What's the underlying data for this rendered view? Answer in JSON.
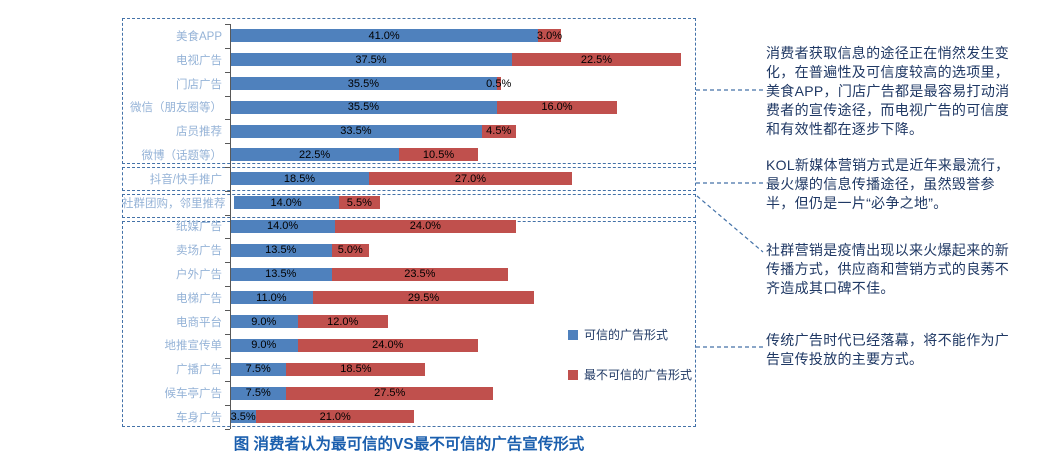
{
  "colors": {
    "trusted_blue": "#4F81BD",
    "untrusted_red": "#C0504D",
    "category_label_blue": "#95B3D7",
    "annotation_navy": "#1F3864",
    "caption_blue": "#1B5FAE",
    "dashed_box_blue": "#4472A8",
    "axis_gray": "#595959"
  },
  "chart_data": {
    "type": "bar",
    "orientation": "horizontal",
    "stacked": true,
    "title": "图  消费者认为最可信的VS最不可信的广告宣传形式",
    "xlabel": "",
    "ylabel": "",
    "xlim": [
      0,
      62
    ],
    "grid": false,
    "legend_position": "inside-right",
    "value_suffix": "%",
    "categories": [
      "美食APP",
      "电视广告",
      "门店广告",
      "微信（朋友圈等）",
      "店员推荐",
      "微博（话题等）",
      "抖音/快手推广",
      "社群团购，邻里推荐",
      "纸媒广告",
      "卖场广告",
      "户外广告",
      "电梯广告",
      "电商平台",
      "地推宣传单",
      "广播广告",
      "候车亭广告",
      "车身广告"
    ],
    "series": [
      {
        "name": "可信的广告形式",
        "color": "#4F81BD",
        "values": [
          41.0,
          37.5,
          35.5,
          35.5,
          33.5,
          22.5,
          18.5,
          14.0,
          14.0,
          13.5,
          13.5,
          11.0,
          9.0,
          9.0,
          7.5,
          7.5,
          3.5
        ]
      },
      {
        "name": "最不可信的广告形式",
        "color": "#C0504D",
        "values": [
          3.0,
          22.5,
          0.5,
          16.0,
          4.5,
          10.5,
          27.0,
          5.5,
          24.0,
          5.0,
          23.5,
          29.5,
          12.0,
          24.0,
          18.5,
          27.5,
          21.0
        ]
      }
    ],
    "group_boxes": [
      {
        "name": "mainstream-channels",
        "rows": [
          0,
          5
        ]
      },
      {
        "name": "kol-short-video",
        "rows": [
          6,
          6
        ]
      },
      {
        "name": "community-group-buy",
        "rows": [
          7,
          7
        ]
      },
      {
        "name": "traditional-ads",
        "rows": [
          8,
          16
        ]
      }
    ]
  },
  "annotations": [
    "消费者获取信息的途径正在悄然发生变化，在普遍性及可信度较高的选项里，美食APP，门店广告都是最容易打动消费者的宣传途径，而电视广告的可信度和有效性都在逐步下降。",
    "KOL新媒体营销方式是近年来最流行，最火爆的信息传播途径，虽然毁誉参半，但仍是一片“必争之地”。",
    "社群营销是疫情出现以来火爆起来的新传播方式，供应商和营销方式的良莠不齐造成其口碑不佳。",
    "传统广告时代已经落幕，将不能作为广告宣传投放的主要方式。"
  ]
}
